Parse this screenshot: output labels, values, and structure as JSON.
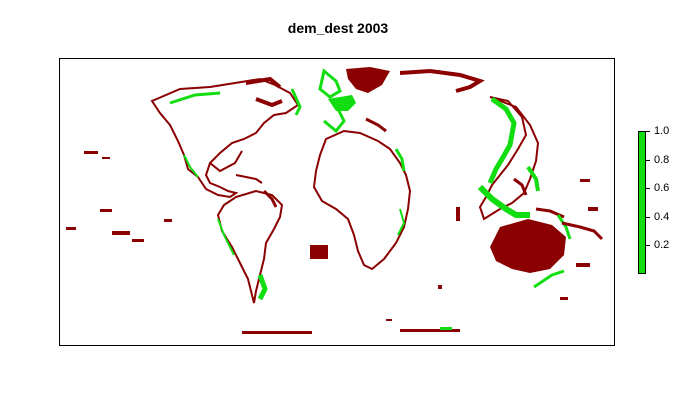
{
  "title": "dem_dest 2003",
  "legend": {
    "ticks": [
      "1.0",
      "0.8",
      "0.6",
      "0.4",
      "0.2"
    ],
    "tick_values": [
      1.0,
      0.8,
      0.6,
      0.4,
      0.2
    ],
    "range": [
      0.0,
      1.0
    ],
    "bar_color": "#11dd11"
  },
  "colors": {
    "land_high": "#11dd11",
    "land_low": "#8b0000",
    "frame": "#000000",
    "background": "#ffffff"
  }
}
